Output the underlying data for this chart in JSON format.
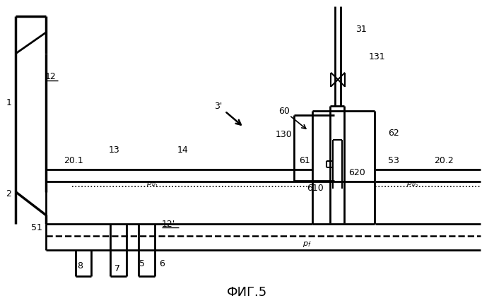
{
  "bg_color": "#ffffff",
  "title": "ФИГ.5",
  "title_fontsize": 13,
  "figsize": [
    6.99,
    4.29
  ],
  "dpi": 100
}
